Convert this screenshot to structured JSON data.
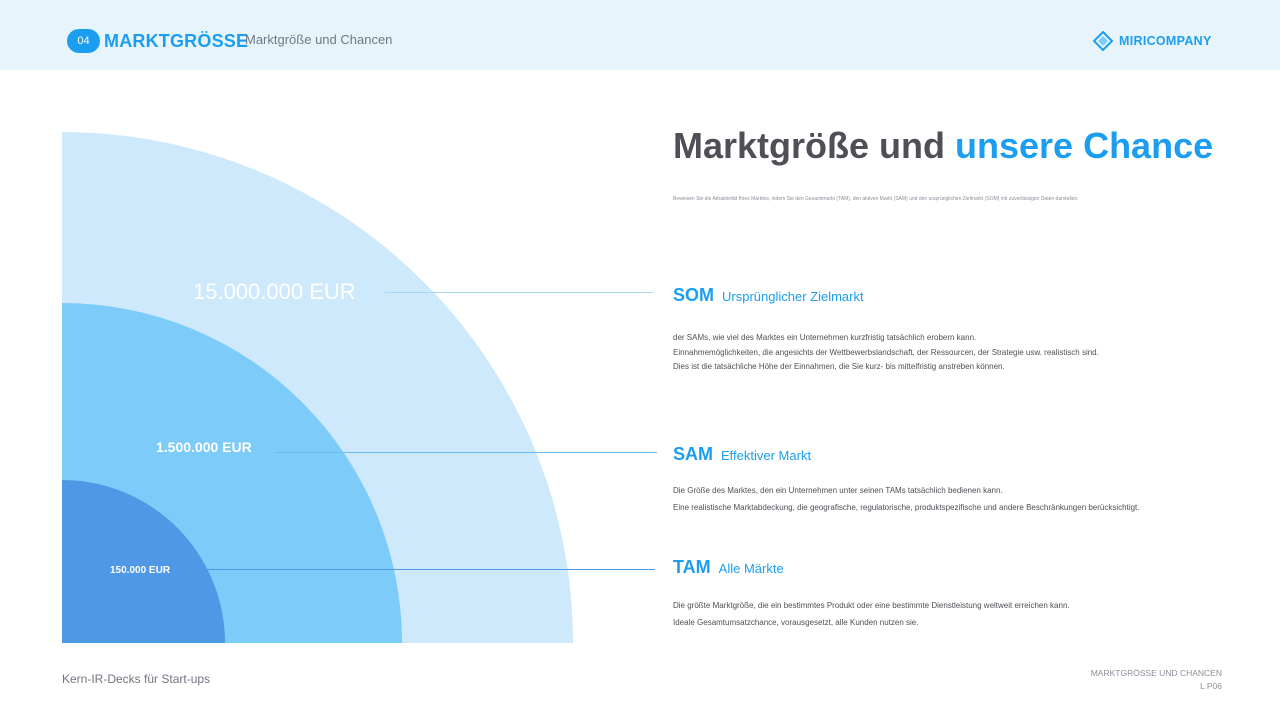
{
  "header": {
    "badge": "04",
    "section_title": "MARKTGRÖSSE",
    "section_subtitle": "Marktgröße und Chancen",
    "logo_text": "MIRICOMPANY",
    "logo_icon": "diamond-logo-icon"
  },
  "chart": {
    "values": [
      "15.000.000 EUR",
      "1.500.000 EUR",
      "150.000 EUR"
    ]
  },
  "main": {
    "title_plain": "Marktgröße und ",
    "title_accent": "unsere Chance",
    "intro": "Beweisen Sie die Attraktivität Ihres Marktes, indem Sie den Gesamtmarkt (TAM), den aktiven Markt (SAM) und den ursprünglichen Zielmarkt (SOM) mit zuverlässigen Daten darstellen.",
    "items": [
      {
        "abbr": "SOM",
        "label": "Ursprünglicher Zielmarkt",
        "lines": [
          "der SAMs, wie viel des Marktes ein Unternehmen kurzfristig tatsächlich erobern kann.",
          "Einnahmemöglichkeiten, die angesichts der Wettbewerbslandschaft, der Ressourcen, der Strategie usw. realistisch sind.",
          "Dies ist die tatsächliche Höhe der Einnahmen, die Sie kurz- bis mittelfristig anstreben können."
        ]
      },
      {
        "abbr": "SAM",
        "label": "Effektiver Markt",
        "lines": [
          "Die Größe des Marktes, den ein Unternehmen unter seinen TAMs tatsächlich bedienen kann.",
          "Eine realistische Marktabdeckung, die geografische, regulatorische, produktspezifische und andere Beschränkungen berücksichtigt."
        ]
      },
      {
        "abbr": "TAM",
        "label": "Alle Märkte",
        "lines": [
          "Die größte Marktgröße, die ein bestimmtes Produkt oder eine bestimmte Dienstleistung weltweit erreichen kann.",
          "Ideale Gesamtumsatzchance, vorausgesetzt, alle Kunden nutzen sie."
        ]
      }
    ]
  },
  "footer": {
    "left": "Kern-IR-Decks für Start-ups",
    "right_title": "MARKTGRÖSSE UND CHANCEN",
    "right_page": "L P06"
  },
  "colors": {
    "accent": "#1b9ef0",
    "header_bg": "#e7f4fc",
    "arc_outer": "#cde9fb",
    "arc_middle": "#7dcbf8",
    "arc_inner": "#4f98e6",
    "title_text": "#4f4f57"
  }
}
